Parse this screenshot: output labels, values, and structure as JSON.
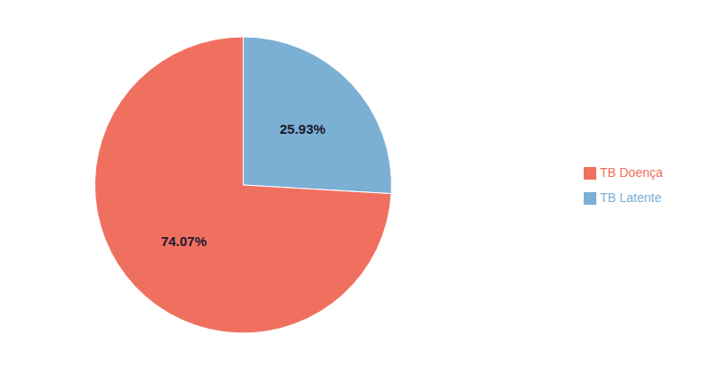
{
  "chart_data": {
    "type": "pie",
    "categories": [
      "TB Latente",
      "TB Doença"
    ],
    "values": [
      25.93,
      74.07
    ],
    "value_labels": [
      "25.93%",
      "74.07%"
    ],
    "colors": [
      "#7BAFD4",
      "#F07060"
    ],
    "data_labels": true,
    "legend": "right"
  }
}
